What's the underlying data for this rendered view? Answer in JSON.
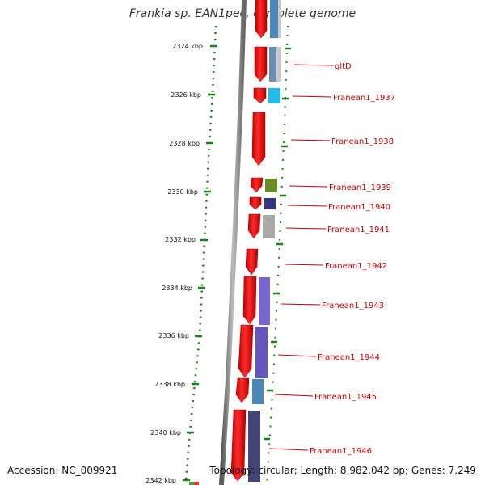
{
  "title": "Frankia sp. EAN1pec, complete genome",
  "footer": {
    "accession": "Accession: NC_009921",
    "topology": "Topology: circular; Length: 8,982,042 bp; Genes: 7,249"
  },
  "ticks": [
    {
      "label": "2324 kbp"
    },
    {
      "label": "2326 kbp"
    },
    {
      "label": "2328 kbp"
    },
    {
      "label": "2330 kbp"
    },
    {
      "label": "2332 kbp"
    },
    {
      "label": "2334 kbp"
    },
    {
      "label": "2336 kbp"
    },
    {
      "label": "2338 kbp"
    },
    {
      "label": "2340 kbp"
    },
    {
      "label": "2342 kbp"
    }
  ],
  "gene_labels": [
    {
      "name": "gltD"
    },
    {
      "name": "Franean1_1937"
    },
    {
      "name": "Franean1_1938"
    },
    {
      "name": "Franean1_1939"
    },
    {
      "name": "Franean1_1940"
    },
    {
      "name": "Franean1_1941"
    },
    {
      "name": "Franean1_1942"
    },
    {
      "name": "Franean1_1943"
    },
    {
      "name": "Franean1_1944"
    },
    {
      "name": "Franean1_1945"
    },
    {
      "name": "Franean1_1946"
    }
  ],
  "colors": {
    "cds": "#ee1111",
    "ruler": "#118811",
    "label": "#cc0000",
    "backbone": "#888888"
  }
}
